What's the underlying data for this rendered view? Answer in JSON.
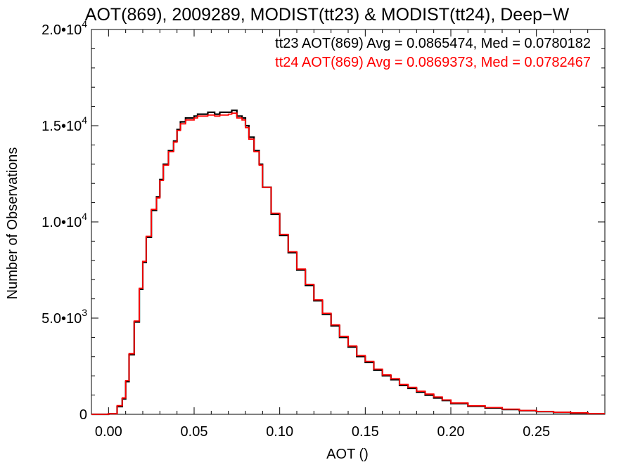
{
  "chart_data": {
    "type": "line",
    "title": "AOT(869), 2009289, MODIST(tt23) & MODIST(tt24), Deep−W",
    "xlabel": "AOT ()",
    "ylabel": "Number of Observations",
    "xlim": [
      -0.01,
      0.29
    ],
    "ylim": [
      0,
      20000
    ],
    "x_ticks": [
      0.0,
      0.05,
      0.1,
      0.15,
      0.2,
      0.25
    ],
    "x_tick_labels": [
      "0.00",
      "0.05",
      "0.10",
      "0.15",
      "0.20",
      "0.25"
    ],
    "y_ticks": [
      0,
      5000,
      10000,
      15000,
      20000
    ],
    "y_tick_labels": [
      {
        "mant": "0",
        "exp": ""
      },
      {
        "mant": "5.0•10",
        "exp": "3"
      },
      {
        "mant": "1.0•10",
        "exp": "4"
      },
      {
        "mant": "1.5•10",
        "exp": "4"
      },
      {
        "mant": "2.0•10",
        "exp": "4"
      }
    ],
    "stats": [
      {
        "text": "tt23 AOT(869) Avg = 0.0865474, Med = 0.0780182",
        "color": "#000000"
      },
      {
        "text": "tt24 AOT(869) Avg = 0.0869373, Med = 0.0782467",
        "color": "#ff0000"
      }
    ],
    "series": [
      {
        "color": "#000000",
        "x": [
          0.0,
          0.005,
          0.008,
          0.01,
          0.012,
          0.015,
          0.018,
          0.02,
          0.022,
          0.025,
          0.028,
          0.03,
          0.032,
          0.035,
          0.038,
          0.04,
          0.042,
          0.045,
          0.048,
          0.05,
          0.052,
          0.055,
          0.058,
          0.06,
          0.062,
          0.065,
          0.068,
          0.07,
          0.072,
          0.075,
          0.078,
          0.08,
          0.082,
          0.085,
          0.088,
          0.09,
          0.095,
          0.1,
          0.105,
          0.11,
          0.115,
          0.12,
          0.125,
          0.13,
          0.135,
          0.14,
          0.145,
          0.15,
          0.155,
          0.16,
          0.165,
          0.17,
          0.175,
          0.18,
          0.185,
          0.19,
          0.195,
          0.2,
          0.21,
          0.22,
          0.23,
          0.24,
          0.25,
          0.26,
          0.27,
          0.28,
          0.288
        ],
        "y": [
          0,
          30,
          400,
          800,
          1700,
          3100,
          4800,
          6500,
          7900,
          9200,
          10600,
          11300,
          12200,
          13000,
          13700,
          14200,
          14800,
          15200,
          15400,
          15400,
          15500,
          15600,
          15600,
          15700,
          15700,
          15600,
          15700,
          15700,
          15700,
          15800,
          15500,
          15400,
          15000,
          14400,
          13700,
          13000,
          11800,
          10400,
          9300,
          8400,
          7500,
          6700,
          5900,
          5200,
          4600,
          4000,
          3500,
          3000,
          2700,
          2300,
          2000,
          1800,
          1500,
          1350,
          1150,
          1000,
          850,
          720,
          560,
          420,
          330,
          250,
          190,
          140,
          100,
          70,
          30
        ]
      },
      {
        "color": "#ff0000",
        "x": [
          0.0,
          0.005,
          0.008,
          0.01,
          0.012,
          0.015,
          0.018,
          0.02,
          0.022,
          0.025,
          0.028,
          0.03,
          0.032,
          0.035,
          0.038,
          0.04,
          0.042,
          0.045,
          0.048,
          0.05,
          0.052,
          0.055,
          0.058,
          0.06,
          0.062,
          0.065,
          0.068,
          0.07,
          0.072,
          0.075,
          0.078,
          0.08,
          0.082,
          0.085,
          0.088,
          0.09,
          0.095,
          0.1,
          0.105,
          0.11,
          0.115,
          0.12,
          0.125,
          0.13,
          0.135,
          0.14,
          0.145,
          0.15,
          0.155,
          0.16,
          0.165,
          0.17,
          0.175,
          0.18,
          0.185,
          0.19,
          0.195,
          0.2,
          0.21,
          0.22,
          0.23,
          0.24,
          0.25,
          0.26,
          0.27,
          0.28,
          0.288
        ],
        "y": [
          0,
          30,
          450,
          850,
          1750,
          3150,
          4850,
          6550,
          7950,
          9250,
          10650,
          11250,
          12150,
          12950,
          13650,
          14150,
          14750,
          15100,
          15300,
          15300,
          15400,
          15500,
          15500,
          15550,
          15550,
          15500,
          15550,
          15550,
          15600,
          15650,
          15400,
          15300,
          14900,
          14300,
          13650,
          12950,
          11800,
          10450,
          9350,
          8450,
          7550,
          6750,
          5950,
          5250,
          4650,
          4050,
          3550,
          3050,
          2750,
          2350,
          2050,
          1850,
          1550,
          1400,
          1200,
          1050,
          900,
          750,
          590,
          440,
          350,
          270,
          200,
          150,
          105,
          75,
          35
        ]
      }
    ]
  }
}
